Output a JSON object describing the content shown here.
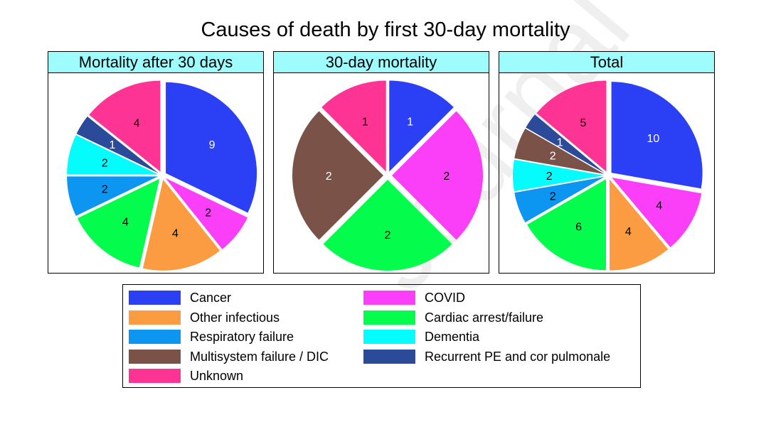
{
  "title": "Causes of death by first 30-day mortality",
  "watermark": "Journal Pre-proof",
  "colors": {
    "Cancer": "#2b3ff5",
    "Other infectious": "#fb9b42",
    "Respiratory failure": "#0d95f2",
    "Multisystem failure / DIC": "#7a5248",
    "Unknown": "#fd3494",
    "COVID": "#fb3ff9",
    "Cardiac arrest/failure": "#04fc4c",
    "Dementia": "#05fcfc",
    "Recurrent PE and cor pulmonale": "#2c4a9a"
  },
  "legend": [
    {
      "label": "Cancer"
    },
    {
      "label": "COVID"
    },
    {
      "label": "Other infectious"
    },
    {
      "label": "Cardiac arrest/failure"
    },
    {
      "label": "Respiratory failure"
    },
    {
      "label": "Dementia"
    },
    {
      "label": "Multisystem failure / DIC"
    },
    {
      "label": "Recurrent PE and cor pulmonale"
    },
    {
      "label": "Unknown"
    }
  ],
  "chart_data": [
    {
      "type": "pie",
      "title": "Mortality after 30 days",
      "slices": [
        {
          "category": "Cancer",
          "value": 9,
          "label": "9"
        },
        {
          "category": "COVID",
          "value": 2,
          "label": "2"
        },
        {
          "category": "Other infectious",
          "value": 4,
          "label": "4"
        },
        {
          "category": "Cardiac arrest/failure",
          "value": 4,
          "label": "4"
        },
        {
          "category": "Respiratory failure",
          "value": 2,
          "label": "2"
        },
        {
          "category": "Dementia",
          "value": 2,
          "label": "2"
        },
        {
          "category": "Recurrent PE and cor pulmonale",
          "value": 1,
          "label": "1"
        },
        {
          "category": "Unknown",
          "value": 4,
          "label": "4"
        }
      ]
    },
    {
      "type": "pie",
      "title": "30-day mortality",
      "slices": [
        {
          "category": "Cancer",
          "value": 1,
          "label": "1"
        },
        {
          "category": "COVID",
          "value": 2,
          "label": "2"
        },
        {
          "category": "Cardiac arrest/failure",
          "value": 2,
          "label": "2"
        },
        {
          "category": "Multisystem failure / DIC",
          "value": 2,
          "label": "2"
        },
        {
          "category": "Unknown",
          "value": 1,
          "label": "1"
        }
      ]
    },
    {
      "type": "pie",
      "title": "Total",
      "slices": [
        {
          "category": "Cancer",
          "value": 10,
          "label": "10"
        },
        {
          "category": "COVID",
          "value": 4,
          "label": "4"
        },
        {
          "category": "Other infectious",
          "value": 4,
          "label": "4"
        },
        {
          "category": "Cardiac arrest/failure",
          "value": 6,
          "label": "6"
        },
        {
          "category": "Respiratory failure",
          "value": 2,
          "label": "2"
        },
        {
          "category": "Dementia",
          "value": 2,
          "label": "2"
        },
        {
          "category": "Multisystem failure / DIC",
          "value": 2,
          "label": "2"
        },
        {
          "category": "Recurrent PE and cor pulmonale",
          "value": 1,
          "label": "1"
        },
        {
          "category": "Unknown",
          "value": 5,
          "label": "5"
        }
      ]
    }
  ]
}
